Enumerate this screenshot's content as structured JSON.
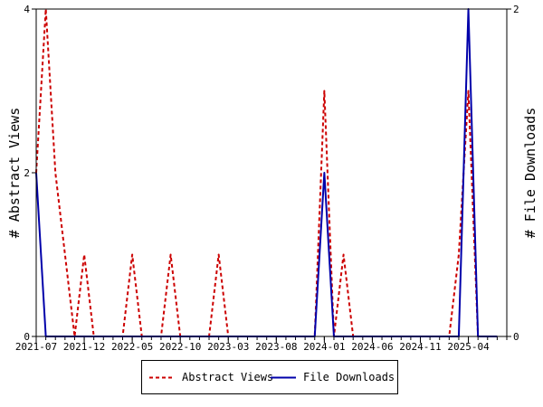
{
  "chart_data": {
    "type": "line",
    "ylabel_left": "# Abstract Views",
    "ylabel_right": "# File Downloads",
    "x_tick_labels": [
      "2021-07",
      "2021-12",
      "2022-05",
      "2022-10",
      "2023-03",
      "2023-08",
      "2024-01",
      "2024-06",
      "2024-11",
      "2025-04"
    ],
    "ylim_left": [
      0,
      4
    ],
    "yticks_left": [
      "0",
      "2",
      "4"
    ],
    "ylim_right": [
      0,
      2
    ],
    "yticks_right": [
      "0",
      "2"
    ],
    "grid": false,
    "legend_position": "bottom",
    "series": [
      {
        "name": "Abstract Views",
        "axis": "left",
        "color": "#cc0000",
        "style": "dashed",
        "points": [
          [
            "2021-07",
            2
          ],
          [
            "2021-08",
            4
          ],
          [
            "2021-09",
            2
          ],
          [
            "2021-10",
            1
          ],
          [
            "2021-11",
            0
          ],
          [
            "2021-12",
            1
          ],
          [
            "2022-01",
            0
          ],
          [
            "2022-02",
            0
          ],
          [
            "2022-03",
            0
          ],
          [
            "2022-04",
            0
          ],
          [
            "2022-05",
            1
          ],
          [
            "2022-06",
            0
          ],
          [
            "2022-07",
            0
          ],
          [
            "2022-08",
            0
          ],
          [
            "2022-09",
            1
          ],
          [
            "2022-10",
            0
          ],
          [
            "2022-11",
            0
          ],
          [
            "2022-12",
            0
          ],
          [
            "2023-01",
            0
          ],
          [
            "2023-02",
            1
          ],
          [
            "2023-03",
            0
          ],
          [
            "2023-04",
            0
          ],
          [
            "2023-05",
            0
          ],
          [
            "2023-06",
            0
          ],
          [
            "2023-07",
            0
          ],
          [
            "2023-08",
            0
          ],
          [
            "2023-09",
            0
          ],
          [
            "2023-10",
            0
          ],
          [
            "2023-11",
            0
          ],
          [
            "2023-12",
            0
          ],
          [
            "2024-01",
            3
          ],
          [
            "2024-02",
            0
          ],
          [
            "2024-03",
            1
          ],
          [
            "2024-04",
            0
          ],
          [
            "2024-05",
            0
          ],
          [
            "2024-06",
            0
          ],
          [
            "2024-07",
            0
          ],
          [
            "2024-08",
            0
          ],
          [
            "2024-09",
            0
          ],
          [
            "2024-10",
            0
          ],
          [
            "2024-11",
            0
          ],
          [
            "2024-12",
            0
          ],
          [
            "2025-01",
            0
          ],
          [
            "2025-02",
            0
          ],
          [
            "2025-03",
            1
          ],
          [
            "2025-04",
            3
          ],
          [
            "2025-05",
            0
          ],
          [
            "2025-06",
            0
          ],
          [
            "2025-07",
            0
          ]
        ]
      },
      {
        "name": "File Downloads",
        "axis": "right",
        "color": "#0000aa",
        "style": "solid",
        "points": [
          [
            "2021-07",
            1
          ],
          [
            "2021-08",
            0
          ],
          [
            "2021-09",
            0
          ],
          [
            "2021-10",
            0
          ],
          [
            "2021-11",
            0
          ],
          [
            "2021-12",
            0
          ],
          [
            "2022-01",
            0
          ],
          [
            "2022-02",
            0
          ],
          [
            "2022-03",
            0
          ],
          [
            "2022-04",
            0
          ],
          [
            "2022-05",
            0
          ],
          [
            "2022-06",
            0
          ],
          [
            "2022-07",
            0
          ],
          [
            "2022-08",
            0
          ],
          [
            "2022-09",
            0
          ],
          [
            "2022-10",
            0
          ],
          [
            "2022-11",
            0
          ],
          [
            "2022-12",
            0
          ],
          [
            "2023-01",
            0
          ],
          [
            "2023-02",
            0
          ],
          [
            "2023-03",
            0
          ],
          [
            "2023-04",
            0
          ],
          [
            "2023-05",
            0
          ],
          [
            "2023-06",
            0
          ],
          [
            "2023-07",
            0
          ],
          [
            "2023-08",
            0
          ],
          [
            "2023-09",
            0
          ],
          [
            "2023-10",
            0
          ],
          [
            "2023-11",
            0
          ],
          [
            "2023-12",
            0
          ],
          [
            "2024-01",
            1
          ],
          [
            "2024-02",
            0
          ],
          [
            "2024-03",
            0
          ],
          [
            "2024-04",
            0
          ],
          [
            "2024-05",
            0
          ],
          [
            "2024-06",
            0
          ],
          [
            "2024-07",
            0
          ],
          [
            "2024-08",
            0
          ],
          [
            "2024-09",
            0
          ],
          [
            "2024-10",
            0
          ],
          [
            "2024-11",
            0
          ],
          [
            "2024-12",
            0
          ],
          [
            "2025-01",
            0
          ],
          [
            "2025-02",
            0
          ],
          [
            "2025-03",
            0
          ],
          [
            "2025-04",
            2
          ],
          [
            "2025-05",
            0
          ],
          [
            "2025-06",
            0
          ],
          [
            "2025-07",
            0
          ]
        ]
      }
    ]
  },
  "legend": {
    "items": [
      {
        "label": "Abstract Views",
        "color": "#cc0000",
        "style": "dashed"
      },
      {
        "label": "File Downloads",
        "color": "#0000aa",
        "style": "solid"
      }
    ]
  }
}
